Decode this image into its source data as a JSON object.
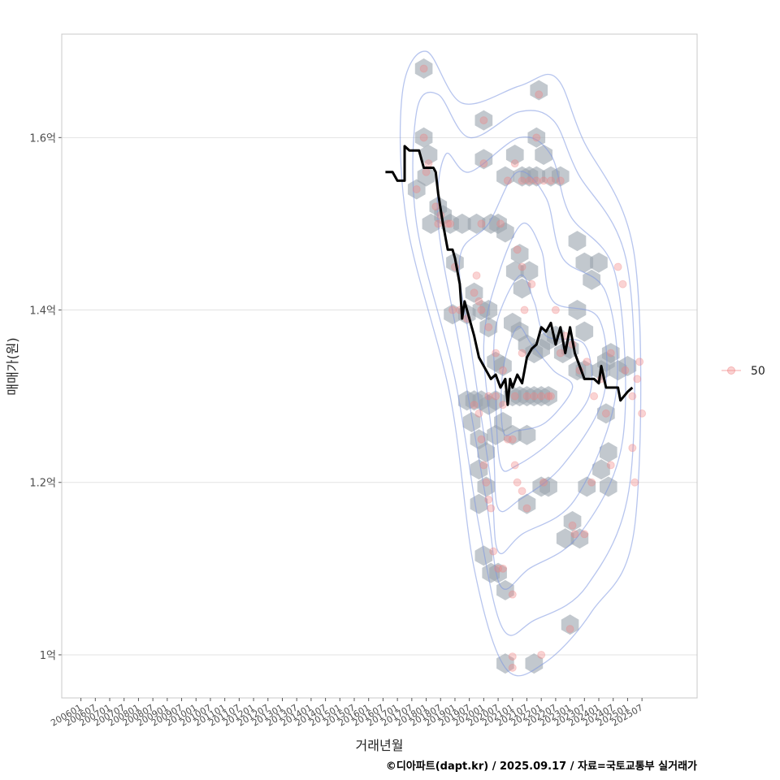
{
  "chart_data": {
    "type": "scatter",
    "ylabel": "매매가(원)",
    "xlabel": "거래년월",
    "caption": "©디아파트(dapt.kr) / 2025.09.17 / 자료=국토교통부 실거래가",
    "legend": {
      "label": "50",
      "placement": "right"
    },
    "grid": true,
    "ylim": [
      0.95,
      1.72
    ],
    "xlim": [
      "2005-05",
      "2027-06"
    ],
    "y_ticks": [
      {
        "value": 1.0,
        "label": "1억"
      },
      {
        "value": 1.2,
        "label": "1.2억"
      },
      {
        "value": 1.4,
        "label": "1.4억"
      },
      {
        "value": 1.6,
        "label": "1.6억"
      }
    ],
    "x_ticks": [
      "200601",
      "200607",
      "200701",
      "200707",
      "200801",
      "200807",
      "200901",
      "200907",
      "201001",
      "201007",
      "201101",
      "201107",
      "201201",
      "201207",
      "201301",
      "201307",
      "201401",
      "201407",
      "201501",
      "201507",
      "201601",
      "201607",
      "201701",
      "201707",
      "201801",
      "201807",
      "201901",
      "201907",
      "202001",
      "202007",
      "202101",
      "202107",
      "202201",
      "202207",
      "202301",
      "202307",
      "202401",
      "202407",
      "202501",
      "202507"
    ],
    "colors": {
      "points": "#f08080",
      "line": "#000000",
      "hex": "#9aa3ad",
      "contour": "#7b96e0"
    },
    "points": [
      [
        "2017-12",
        1.68
      ],
      [
        "2017-12",
        1.6
      ],
      [
        "2018-02",
        1.57
      ],
      [
        "2018-01",
        1.56
      ],
      [
        "2017-09",
        1.54
      ],
      [
        "2018-05",
        1.52
      ],
      [
        "2018-07",
        1.51
      ],
      [
        "2018-06",
        1.5
      ],
      [
        "2018-10",
        1.5
      ],
      [
        "2018-11",
        1.5
      ],
      [
        "2019-01",
        1.45
      ],
      [
        "2018-12",
        1.4
      ],
      [
        "2019-03",
        1.4
      ],
      [
        "2019-06",
        1.39
      ],
      [
        "2019-09",
        1.42
      ],
      [
        "2019-10",
        1.44
      ],
      [
        "2019-11",
        1.41
      ],
      [
        "2019-12",
        1.4
      ],
      [
        "2020-03",
        1.38
      ],
      [
        "2020-06",
        1.35
      ],
      [
        "2020-09",
        1.33
      ],
      [
        "2019-12",
        1.5
      ],
      [
        "2020-01",
        1.62
      ],
      [
        "2020-01",
        1.57
      ],
      [
        "2020-08",
        1.5
      ],
      [
        "2020-11",
        1.55
      ],
      [
        "2021-02",
        1.57
      ],
      [
        "2021-05",
        1.55
      ],
      [
        "2021-08",
        1.55
      ],
      [
        "2021-11",
        1.6
      ],
      [
        "2021-11",
        1.55
      ],
      [
        "2022-02",
        1.55
      ],
      [
        "2022-05",
        1.55
      ],
      [
        "2021-12",
        1.65
      ],
      [
        "2022-09",
        1.55
      ],
      [
        "2021-03",
        1.47
      ],
      [
        "2021-05",
        1.45
      ],
      [
        "2021-09",
        1.43
      ],
      [
        "2021-06",
        1.4
      ],
      [
        "2021-05",
        1.35
      ],
      [
        "2021-02",
        1.3
      ],
      [
        "2021-07",
        1.3
      ],
      [
        "2021-10",
        1.3
      ],
      [
        "2022-01",
        1.3
      ],
      [
        "2022-04",
        1.3
      ],
      [
        "2022-07",
        1.4
      ],
      [
        "2022-09",
        1.35
      ],
      [
        "2022-11",
        1.37
      ],
      [
        "2023-02",
        1.36
      ],
      [
        "2023-05",
        1.33
      ],
      [
        "2023-08",
        1.34
      ],
      [
        "2023-11",
        1.3
      ],
      [
        "2024-02",
        1.32
      ],
      [
        "2024-04",
        1.28
      ],
      [
        "2024-06",
        1.35
      ],
      [
        "2024-09",
        1.45
      ],
      [
        "2024-11",
        1.43
      ],
      [
        "2024-12",
        1.33
      ],
      [
        "2025-03",
        1.3
      ],
      [
        "2025-05",
        1.32
      ],
      [
        "2025-06",
        1.34
      ],
      [
        "2025-07",
        1.28
      ],
      [
        "2019-09",
        1.29
      ],
      [
        "2019-11",
        1.28
      ],
      [
        "2019-12",
        1.25
      ],
      [
        "2020-01",
        1.22
      ],
      [
        "2020-02",
        1.2
      ],
      [
        "2020-03",
        1.18
      ],
      [
        "2020-04",
        1.17
      ],
      [
        "2020-09",
        1.29
      ],
      [
        "2020-05",
        1.12
      ],
      [
        "2020-07",
        1.1
      ],
      [
        "2020-09",
        1.1
      ],
      [
        "2021-01",
        1.07
      ],
      [
        "2020-11",
        1.25
      ],
      [
        "2021-02",
        1.22
      ],
      [
        "2021-03",
        1.2
      ],
      [
        "2021-05",
        1.19
      ],
      [
        "2021-07",
        1.17
      ],
      [
        "2022-02",
        1.2
      ],
      [
        "2023-02",
        1.15
      ],
      [
        "2023-03",
        1.14
      ],
      [
        "2023-07",
        1.14
      ],
      [
        "2023-01",
        1.03
      ],
      [
        "2023-10",
        1.2
      ],
      [
        "2024-06",
        1.22
      ],
      [
        "2025-03",
        1.24
      ],
      [
        "2025-04",
        1.2
      ],
      [
        "2021-01",
        0.985
      ],
      [
        "2021-01",
        0.998
      ],
      [
        "2022-01",
        1.0
      ],
      [
        "2022-05",
        1.3
      ],
      [
        "2020-03",
        1.3
      ],
      [
        "2020-06",
        1.3
      ],
      [
        "2021-01",
        1.25
      ]
    ],
    "line": [
      [
        "2016-08",
        1.56
      ],
      [
        "2016-11",
        1.56
      ],
      [
        "2017-01",
        1.55
      ],
      [
        "2017-04",
        1.55
      ],
      [
        "2017-04",
        1.59
      ],
      [
        "2017-06",
        1.585
      ],
      [
        "2017-10",
        1.585
      ],
      [
        "2017-12",
        1.565
      ],
      [
        "2018-04",
        1.565
      ],
      [
        "2018-05",
        1.56
      ],
      [
        "2018-06",
        1.535
      ],
      [
        "2018-08",
        1.5
      ],
      [
        "2018-10",
        1.47
      ],
      [
        "2018-12",
        1.47
      ],
      [
        "2019-01",
        1.46
      ],
      [
        "2019-03",
        1.43
      ],
      [
        "2019-04",
        1.39
      ],
      [
        "2019-05",
        1.41
      ],
      [
        "2019-07",
        1.39
      ],
      [
        "2019-09",
        1.37
      ],
      [
        "2019-11",
        1.345
      ],
      [
        "2020-02",
        1.33
      ],
      [
        "2020-04",
        1.32
      ],
      [
        "2020-06",
        1.325
      ],
      [
        "2020-08",
        1.31
      ],
      [
        "2020-10",
        1.32
      ],
      [
        "2020-11",
        1.29
      ],
      [
        "2020-12",
        1.32
      ],
      [
        "2021-01",
        1.31
      ],
      [
        "2021-03",
        1.325
      ],
      [
        "2021-05",
        1.315
      ],
      [
        "2021-07",
        1.345
      ],
      [
        "2021-09",
        1.355
      ],
      [
        "2021-11",
        1.36
      ],
      [
        "2022-01",
        1.38
      ],
      [
        "2022-03",
        1.375
      ],
      [
        "2022-05",
        1.385
      ],
      [
        "2022-07",
        1.36
      ],
      [
        "2022-09",
        1.38
      ],
      [
        "2022-11",
        1.35
      ],
      [
        "2023-01",
        1.38
      ],
      [
        "2023-03",
        1.35
      ],
      [
        "2023-05",
        1.335
      ],
      [
        "2023-07",
        1.32
      ],
      [
        "2023-09",
        1.32
      ],
      [
        "2023-11",
        1.32
      ],
      [
        "2024-01",
        1.315
      ],
      [
        "2024-02",
        1.335
      ],
      [
        "2024-04",
        1.31
      ],
      [
        "2024-07",
        1.31
      ],
      [
        "2024-09",
        1.31
      ],
      [
        "2024-10",
        1.295
      ],
      [
        "2025-01",
        1.305
      ],
      [
        "2025-03",
        1.31
      ]
    ],
    "hexbins": [
      [
        "2017-12",
        1.68
      ],
      [
        "2017-12",
        1.6
      ],
      [
        "2018-02",
        1.58
      ],
      [
        "2017-09",
        1.54
      ],
      [
        "2018-01",
        1.555
      ],
      [
        "2018-03",
        1.5
      ],
      [
        "2018-06",
        1.52
      ],
      [
        "2018-08",
        1.51
      ],
      [
        "2018-11",
        1.5
      ],
      [
        "2019-04",
        1.5
      ],
      [
        "2019-10",
        1.5
      ],
      [
        "2020-04",
        1.5
      ],
      [
        "2020-07",
        1.5
      ],
      [
        "2020-10",
        1.49
      ],
      [
        "2020-01",
        1.62
      ],
      [
        "2020-01",
        1.575
      ],
      [
        "2020-10",
        1.555
      ],
      [
        "2021-02",
        1.58
      ],
      [
        "2021-05",
        1.555
      ],
      [
        "2021-08",
        1.555
      ],
      [
        "2021-11",
        1.6
      ],
      [
        "2021-11",
        1.555
      ],
      [
        "2022-02",
        1.58
      ],
      [
        "2022-05",
        1.555
      ],
      [
        "2022-09",
        1.555
      ],
      [
        "2021-12",
        1.655
      ],
      [
        "2021-02",
        1.445
      ],
      [
        "2021-04",
        1.465
      ],
      [
        "2021-08",
        1.445
      ],
      [
        "2021-05",
        1.425
      ],
      [
        "2019-01",
        1.455
      ],
      [
        "2018-12",
        1.395
      ],
      [
        "2019-06",
        1.395
      ],
      [
        "2019-09",
        1.42
      ],
      [
        "2019-12",
        1.4
      ],
      [
        "2020-03",
        1.38
      ],
      [
        "2020-06",
        1.34
      ],
      [
        "2020-09",
        1.335
      ],
      [
        "2020-03",
        1.4
      ],
      [
        "2021-01",
        1.385
      ],
      [
        "2021-04",
        1.375
      ],
      [
        "2021-07",
        1.36
      ],
      [
        "2021-10",
        1.35
      ],
      [
        "2022-01",
        1.355
      ],
      [
        "2022-04",
        1.365
      ],
      [
        "2022-07",
        1.37
      ],
      [
        "2022-10",
        1.35
      ],
      [
        "2023-01",
        1.355
      ],
      [
        "2023-04",
        1.33
      ],
      [
        "2023-07",
        1.33
      ],
      [
        "2023-04",
        1.4
      ],
      [
        "2023-07",
        1.375
      ],
      [
        "2023-04",
        1.48
      ],
      [
        "2023-07",
        1.455
      ],
      [
        "2023-10",
        1.435
      ],
      [
        "2024-01",
        1.455
      ],
      [
        "2024-02",
        1.33
      ],
      [
        "2024-04",
        1.34
      ],
      [
        "2024-06",
        1.35
      ],
      [
        "2024-09",
        1.33
      ],
      [
        "2024-04",
        1.28
      ],
      [
        "2025-01",
        1.335
      ],
      [
        "2019-06",
        1.295
      ],
      [
        "2019-09",
        1.295
      ],
      [
        "2019-12",
        1.295
      ],
      [
        "2020-03",
        1.29
      ],
      [
        "2020-06",
        1.295
      ],
      [
        "2019-08",
        1.27
      ],
      [
        "2019-11",
        1.25
      ],
      [
        "2020-02",
        1.235
      ],
      [
        "2020-06",
        1.255
      ],
      [
        "2020-09",
        1.27
      ],
      [
        "2021-01",
        1.3
      ],
      [
        "2021-04",
        1.3
      ],
      [
        "2021-07",
        1.3
      ],
      [
        "2021-10",
        1.3
      ],
      [
        "2022-01",
        1.3
      ],
      [
        "2022-04",
        1.3
      ],
      [
        "2021-01",
        1.255
      ],
      [
        "2021-07",
        1.255
      ],
      [
        "2019-11",
        1.215
      ],
      [
        "2020-02",
        1.195
      ],
      [
        "2019-11",
        1.175
      ],
      [
        "2021-07",
        1.175
      ],
      [
        "2022-01",
        1.195
      ],
      [
        "2022-04",
        1.195
      ],
      [
        "2020-01",
        1.115
      ],
      [
        "2020-04",
        1.095
      ],
      [
        "2020-07",
        1.095
      ],
      [
        "2020-10",
        1.075
      ],
      [
        "2022-11",
        1.135
      ],
      [
        "2023-02",
        1.155
      ],
      [
        "2023-05",
        1.135
      ],
      [
        "2023-08",
        1.195
      ],
      [
        "2024-02",
        1.215
      ],
      [
        "2024-05",
        1.235
      ],
      [
        "2024-05",
        1.195
      ],
      [
        "2023-01",
        1.035
      ],
      [
        "2020-10",
        0.99
      ],
      [
        "2021-10",
        0.99
      ]
    ],
    "contours": [
      [
        [
          "2020-10",
          0.985
        ],
        [
          "2019-09",
          1.1
        ],
        [
          "2018-11",
          1.3
        ],
        [
          "2017-05",
          1.5
        ],
        [
          "2017-03",
          1.65
        ],
        [
          "2018-01",
          1.7
        ],
        [
          "2019-04",
          1.64
        ],
        [
          "2021-04",
          1.66
        ],
        [
          "2022-07",
          1.67
        ],
        [
          "2023-06",
          1.6
        ],
        [
          "2025-04",
          1.46
        ],
        [
          "2025-04",
          1.15
        ],
        [
          "2023-10",
          1.05
        ],
        [
          "2022-02",
          0.99
        ],
        [
          "2020-10",
          0.985
        ]
      ],
      [
        [
          "2020-09",
          1.03
        ],
        [
          "2019-11",
          1.15
        ],
        [
          "2019-01",
          1.32
        ],
        [
          "2017-09",
          1.5
        ],
        [
          "2017-09",
          1.63
        ],
        [
          "2018-06",
          1.65
        ],
        [
          "2019-07",
          1.6
        ],
        [
          "2021-04",
          1.63
        ],
        [
          "2022-06",
          1.62
        ],
        [
          "2023-04",
          1.56
        ],
        [
          "2025-01",
          1.45
        ],
        [
          "2025-02",
          1.2
        ],
        [
          "2023-08",
          1.08
        ],
        [
          "2021-10",
          1.04
        ],
        [
          "2020-09",
          1.03
        ]
      ],
      [
        [
          "2020-08",
          1.08
        ],
        [
          "2020-02",
          1.18
        ],
        [
          "2019-04",
          1.34
        ],
        [
          "2018-06",
          1.5
        ],
        [
          "2018-09",
          1.58
        ],
        [
          "2019-07",
          1.56
        ],
        [
          "2021-04",
          1.6
        ],
        [
          "2022-05",
          1.58
        ],
        [
          "2023-01",
          1.51
        ],
        [
          "2024-08",
          1.44
        ],
        [
          "2024-11",
          1.25
        ],
        [
          "2023-05",
          1.14
        ],
        [
          "2021-08",
          1.1
        ],
        [
          "2020-08",
          1.08
        ]
      ],
      [
        [
          "2020-07",
          1.12
        ],
        [
          "2020-04",
          1.2
        ],
        [
          "2019-08",
          1.35
        ],
        [
          "2019-03",
          1.46
        ],
        [
          "2020-03",
          1.5
        ],
        [
          "2021-03",
          1.56
        ],
        [
          "2022-03",
          1.53
        ],
        [
          "2022-10",
          1.46
        ],
        [
          "2024-04",
          1.42
        ],
        [
          "2024-08",
          1.3
        ],
        [
          "2023-03",
          1.18
        ],
        [
          "2021-05",
          1.14
        ],
        [
          "2020-07",
          1.12
        ]
      ],
      [
        [
          "2020-07",
          1.17
        ],
        [
          "2020-05",
          1.24
        ],
        [
          "2020-01",
          1.36
        ],
        [
          "2020-07",
          1.44
        ],
        [
          "2021-05",
          1.5
        ],
        [
          "2022-01",
          1.47
        ],
        [
          "2022-06",
          1.41
        ],
        [
          "2024-01",
          1.39
        ],
        [
          "2024-03",
          1.3
        ],
        [
          "2022-10",
          1.22
        ],
        [
          "2021-04",
          1.18
        ],
        [
          "2020-07",
          1.17
        ]
      ],
      [
        [
          "2020-08",
          1.22
        ],
        [
          "2020-06",
          1.3
        ],
        [
          "2020-06",
          1.38
        ],
        [
          "2021-04",
          1.44
        ],
        [
          "2021-10",
          1.41
        ],
        [
          "2022-03",
          1.37
        ],
        [
          "2023-07",
          1.36
        ],
        [
          "2023-09",
          1.3
        ],
        [
          "2022-06",
          1.25
        ],
        [
          "2021-03",
          1.22
        ],
        [
          "2020-08",
          1.22
        ]
      ],
      [
        [
          "2020-09",
          1.26
        ],
        [
          "2020-09",
          1.33
        ],
        [
          "2021-03",
          1.38
        ],
        [
          "2021-09",
          1.36
        ],
        [
          "2022-06",
          1.33
        ],
        [
          "2023-02",
          1.31
        ],
        [
          "2022-03",
          1.27
        ],
        [
          "2021-03",
          1.26
        ],
        [
          "2020-09",
          1.26
        ]
      ]
    ]
  }
}
